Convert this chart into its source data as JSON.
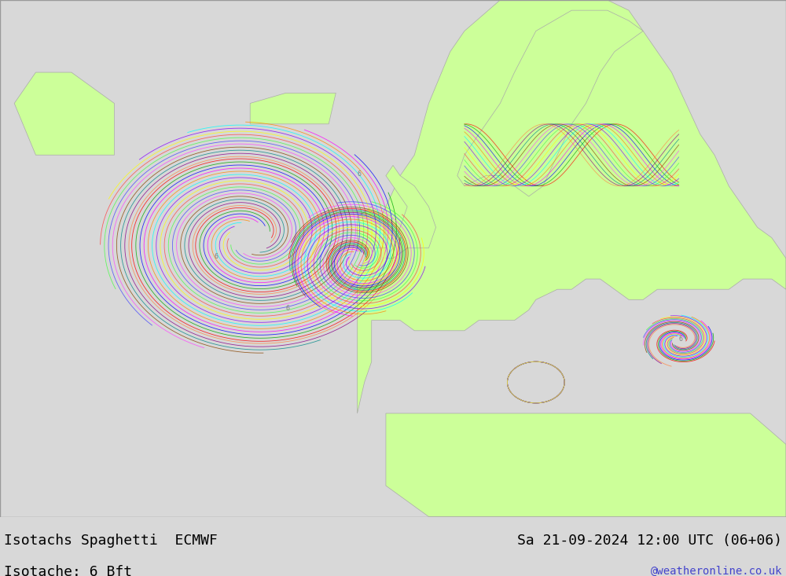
{
  "title_left": "Isotachs Spaghetti  ECMWF",
  "title_right": "Sa 21-09-2024 12:00 UTC (06+06)",
  "subtitle_left": "Isotache: 6 Bft",
  "watermark": "@weatheronline.co.uk",
  "bg_ocean": "#e8e8e8",
  "bg_land": "#ccff99",
  "bg_land2": "#b8f07a",
  "border_color": "#aaaaaa",
  "text_color_main": "#000000",
  "text_color_water": "#4444cc",
  "bottom_bar_color": "#d8d8d8",
  "figsize": [
    10.0,
    7.33
  ],
  "dpi": 100,
  "bottom_bar_height": 0.103,
  "font_size_title": 13,
  "font_size_subtitle": 13,
  "font_size_watermark": 10,
  "line_colors": [
    "#ff0000",
    "#00aa00",
    "#0000ff",
    "#ff00ff",
    "#ff8800",
    "#00ffff",
    "#8800ff",
    "#ffff00",
    "#ff4444",
    "#44ff44",
    "#4444ff",
    "#ff44ff",
    "#884400",
    "#008888",
    "#880088",
    "#ff8844"
  ],
  "map_xlim": [
    -60,
    50
  ],
  "map_ylim": [
    25,
    75
  ]
}
